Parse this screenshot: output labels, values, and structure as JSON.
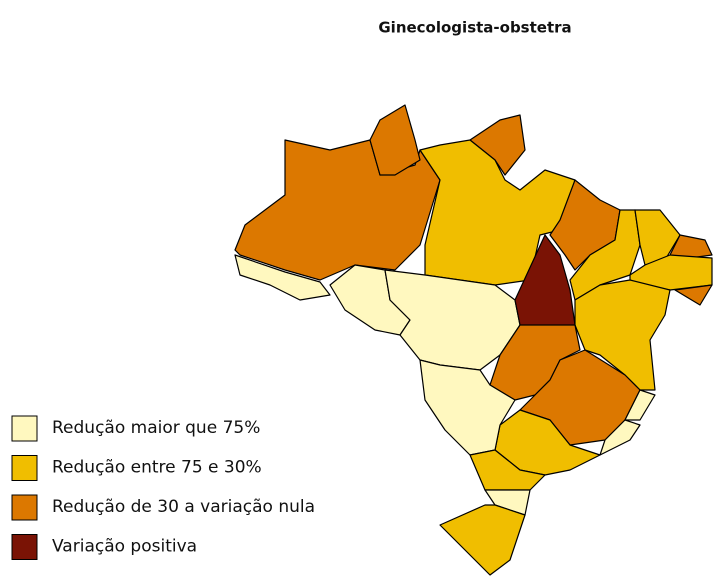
{
  "title": "Ginecologista-obstetra",
  "legend": [
    {
      "name": "Redução maior que 75%",
      "color": "#fff8bf"
    },
    {
      "name": "Redução entre 75 e 30%",
      "color": "#f0be00"
    },
    {
      "name": "Redução de 30 a variação nula",
      "color": "#dc7800"
    },
    {
      "name": "Variação positiva",
      "color": "#7a1305"
    }
  ]
}
